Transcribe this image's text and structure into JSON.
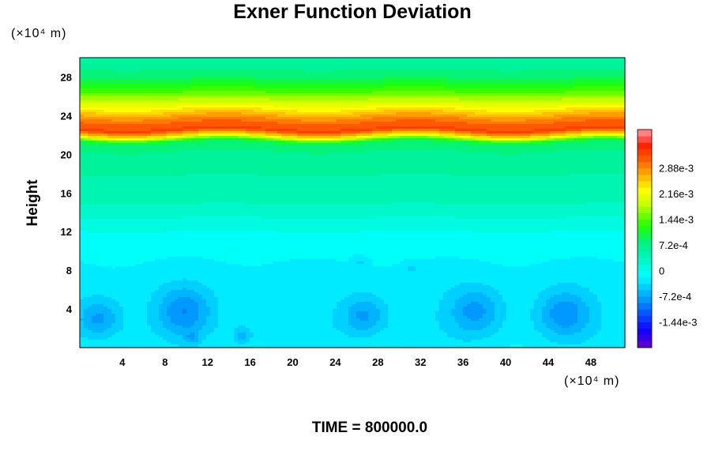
{
  "chart_data": {
    "type": "heatmap",
    "title": "Exner Function Deviation",
    "ylabel": "Height",
    "x_unit": "(×10⁴ m)",
    "y_unit": "(×10⁴ m)",
    "footer": "TIME = 800000.0",
    "xlim": [
      0,
      51.2
    ],
    "ylim": [
      0,
      30
    ],
    "x_ticks": [
      4,
      8,
      12,
      16,
      20,
      24,
      28,
      32,
      36,
      40,
      44,
      48
    ],
    "y_ticks": [
      4,
      8,
      12,
      16,
      20,
      24,
      28
    ],
    "colorbar": {
      "range": [
        -0.00216,
        0.00396
      ],
      "levels": 34,
      "tick_values": [
        0.00288,
        0.00216,
        0.00144,
        0.00072,
        0,
        -0.00072,
        -0.00144
      ],
      "tick_labels": [
        "2.88e-3",
        "2.16e-3",
        "1.44e-3",
        "7.2e-4",
        "0",
        "-7.2e-4",
        "-1.44e-3"
      ]
    },
    "vertical_profile": [
      [
        0,
        -0.00022
      ],
      [
        2,
        -0.00028
      ],
      [
        6,
        -0.00026
      ],
      [
        10,
        -0.00015
      ],
      [
        12,
        0.0
      ],
      [
        15,
        0.00038
      ],
      [
        18,
        0.00055
      ],
      [
        20,
        0.00065
      ],
      [
        21.3,
        0.00095
      ],
      [
        21.8,
        0.00225
      ],
      [
        22.5,
        0.0033
      ],
      [
        23.5,
        0.003
      ],
      [
        25,
        0.00215
      ],
      [
        26.5,
        0.0014
      ],
      [
        28,
        0.00085
      ],
      [
        30,
        0.0005
      ]
    ],
    "anomalies": [
      {
        "x": 1.8,
        "y": 3.0,
        "amp": -0.00052,
        "r": 2.0
      },
      {
        "x": 9.8,
        "y": 3.8,
        "amp": -0.0006,
        "r": 2.5
      },
      {
        "x": 15.3,
        "y": 1.2,
        "amp": -0.00042,
        "r": 0.9
      },
      {
        "x": 10.5,
        "y": 1.0,
        "amp": -0.0003,
        "r": 0.7
      },
      {
        "x": 26.7,
        "y": 3.3,
        "amp": -0.00052,
        "r": 2.0
      },
      {
        "x": 37.2,
        "y": 3.8,
        "amp": -0.00052,
        "r": 2.4
      },
      {
        "x": 45.5,
        "y": 3.5,
        "amp": -0.00058,
        "r": 2.4
      },
      {
        "x": 26.3,
        "y": 8.8,
        "amp": -0.00022,
        "r": 0.6
      },
      {
        "x": 31.2,
        "y": 8.2,
        "amp": -0.0002,
        "r": 0.6
      }
    ]
  }
}
